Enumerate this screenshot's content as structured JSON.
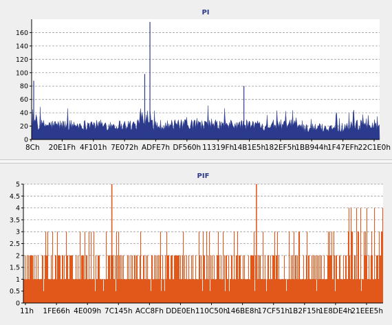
{
  "chart_data": [
    {
      "type": "area",
      "title": "PI",
      "xlabel": "",
      "ylabel": "",
      "ylim": [
        0,
        180
      ],
      "yticks": [
        0,
        20,
        40,
        60,
        80,
        100,
        120,
        140,
        160
      ],
      "x_tick_labels": [
        "8Ch",
        "20E1Fh",
        "4F101h",
        "7E072h",
        "ADFE7h",
        "DF560h",
        "11319Fh",
        "14B1E5h",
        "182EF5h",
        "1BB944h",
        "1F47EFh",
        "22C1E0h"
      ],
      "grid": true,
      "color": "#2b3a8c",
      "series_profile": {
        "x_range": [
          "8Ch",
          "22C1E0h"
        ],
        "typical_level": 30,
        "notable_peaks": [
          {
            "near": "ADFE7h",
            "value": 176
          },
          {
            "near": "ADFE7h",
            "value": 98
          },
          {
            "near": "8Ch",
            "value": 88
          },
          {
            "near": "182EF5h",
            "value": 80
          }
        ]
      }
    },
    {
      "type": "bar",
      "title": "PIF",
      "xlabel": "",
      "ylabel": "",
      "ylim": [
        0,
        5
      ],
      "yticks": [
        "0",
        "0.5",
        "1",
        "1.5",
        "2",
        "2.5",
        "3",
        "3.5",
        "4",
        "4.5",
        "5"
      ],
      "x_tick_labels": [
        "11h",
        "1FE66h",
        "4E009h",
        "7C145h",
        "ACC8Fh",
        "DDE0Eh",
        "110C50h",
        "146BE8h",
        "17CF51h",
        "1B2F15h",
        "1E8DE4h",
        "21EEE5h"
      ],
      "grid": true,
      "color": "#e2581a",
      "series_profile": {
        "x_range": [
          "11h",
          "21EEE5h"
        ],
        "typical_values": [
          1,
          2
        ],
        "notable_peaks": [
          {
            "near": "7C145h",
            "value": 5
          },
          {
            "near": "146BE8h",
            "value": 5
          }
        ]
      }
    }
  ]
}
